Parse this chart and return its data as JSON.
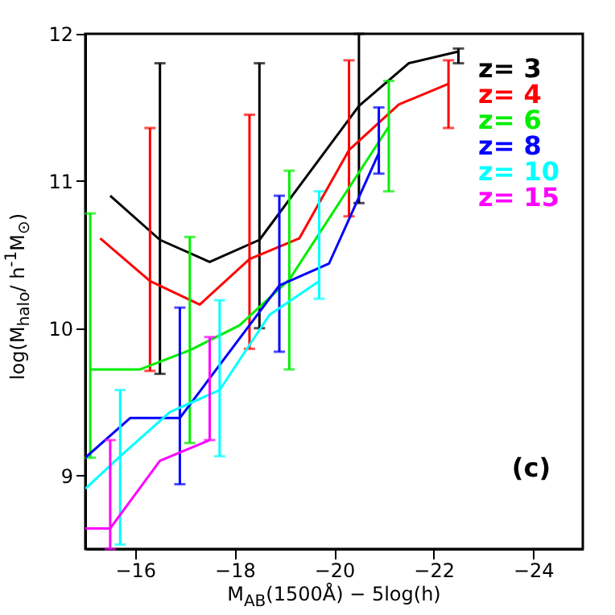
{
  "chart_data": {
    "type": "line",
    "xlabel": "M$_{AB}$(1500Å) − 5log(h)",
    "ylabel": "log(M$_{halo}$/ h$^{-1}$M$_{⊙}$)",
    "xlim": [
      -15,
      -25
    ],
    "ylim": [
      8.5,
      12
    ],
    "xticks": [
      -16,
      -18,
      -20,
      -22,
      -24
    ],
    "yticks": [
      9,
      10,
      11,
      12
    ],
    "legend": "top right",
    "annotations": [
      "(c)"
    ],
    "series": [
      {
        "name": "z= 3",
        "color": "#000000",
        "x": [
          -15.5,
          -16.5,
          -17.5,
          -18.5,
          -20.5,
          -21.5,
          -22.5
        ],
        "values": [
          10.9,
          10.6,
          10.45,
          10.6,
          11.51,
          11.8,
          11.88
        ],
        "errors": [
          null,
          [
            9.69,
            11.8
          ],
          null,
          [
            10.0,
            11.8
          ],
          [
            10.85,
            12.0
          ],
          null,
          [
            11.8,
            11.9
          ]
        ]
      },
      {
        "name": "z= 4",
        "color": "#ff0000",
        "x": [
          -15.3,
          -16.3,
          -17.3,
          -18.3,
          -19.3,
          -20.3,
          -21.3,
          -22.3
        ],
        "values": [
          10.61,
          10.32,
          10.16,
          10.47,
          10.61,
          11.21,
          11.52,
          11.66
        ],
        "errors": [
          null,
          [
            9.71,
            11.36
          ],
          null,
          [
            9.86,
            11.45
          ],
          null,
          [
            10.76,
            11.82
          ],
          null,
          [
            11.36,
            11.82
          ]
        ]
      },
      {
        "name": "z= 6",
        "color": "#00ee00",
        "x": [
          -15.1,
          -16.1,
          -17.1,
          -18.1,
          -19.1,
          -21.1
        ],
        "values": [
          9.72,
          9.72,
          9.85,
          10.02,
          10.33,
          11.37
        ],
        "errors": [
          [
            9.12,
            10.78
          ],
          null,
          [
            9.22,
            10.62
          ],
          null,
          [
            9.72,
            11.07
          ],
          [
            10.93,
            11.68
          ]
        ]
      },
      {
        "name": "z= 8",
        "color": "#0000ff",
        "x": [
          -15.0,
          -15.9,
          -16.9,
          -18.9,
          -19.9,
          -20.9
        ],
        "values": [
          9.12,
          9.39,
          9.39,
          10.29,
          10.44,
          11.19
        ],
        "errors": [
          null,
          null,
          [
            8.94,
            10.14
          ],
          [
            9.84,
            10.9
          ],
          null,
          [
            11.05,
            11.5
          ]
        ]
      },
      {
        "name": "z= 10",
        "color": "#00ffff",
        "x": [
          -15.0,
          -15.7,
          -16.7,
          -17.7,
          -18.7,
          -19.7
        ],
        "values": [
          8.91,
          9.13,
          9.43,
          9.58,
          10.09,
          10.32
        ],
        "errors": [
          null,
          [
            8.53,
            9.58
          ],
          null,
          [
            9.13,
            10.19
          ],
          null,
          [
            10.2,
            10.93
          ]
        ]
      },
      {
        "name": "z= 15",
        "color": "#ff00ff",
        "x": [
          -15.0,
          -15.5,
          -16.5,
          -17.5
        ],
        "values": [
          8.64,
          8.64,
          9.1,
          9.24
        ],
        "errors": [
          null,
          [
            8.5,
            9.24
          ],
          null,
          [
            9.24,
            9.94
          ]
        ]
      }
    ]
  }
}
